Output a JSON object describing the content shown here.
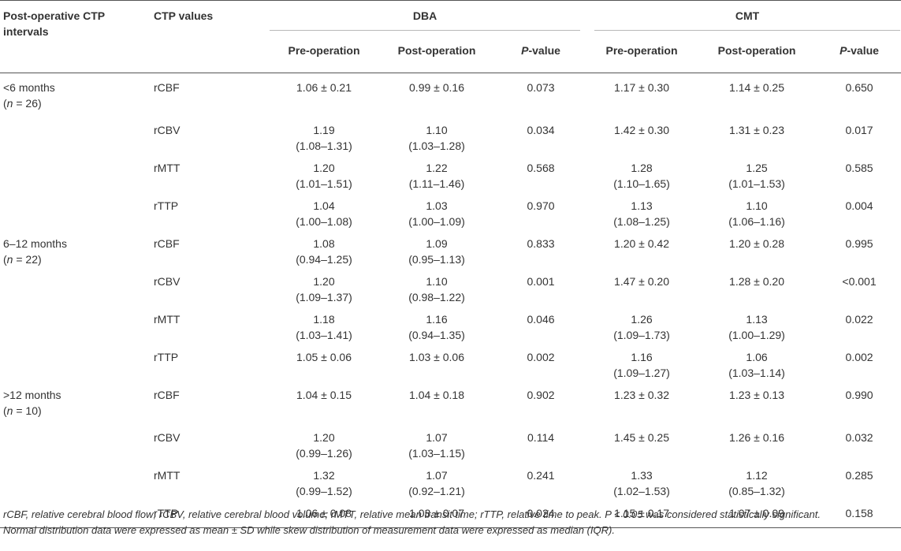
{
  "table": {
    "header": {
      "interval_col": "Post-operative CTP intervals",
      "values_col": "CTP values",
      "group1": "DBA",
      "group2": "CMT",
      "pre": "Pre-operation",
      "post": "Post-operation",
      "p_italic": "P",
      "p_rest": "-value"
    },
    "groups": [
      {
        "interval": "<6 months",
        "n_prefix": "(",
        "n_var": "n",
        "n_rest": " = 26)",
        "rows": [
          {
            "param": "rCBF",
            "dba_pre": "1.06 ± 0.21",
            "dba_pre2": "",
            "dba_post": "0.99 ± 0.16",
            "dba_post2": "",
            "dba_p": "0.073",
            "cmt_pre": "1.17 ± 0.30",
            "cmt_pre2": "",
            "cmt_post": "1.14 ± 0.25",
            "cmt_post2": "",
            "cmt_p": "0.650"
          },
          {
            "param": "rCBV",
            "dba_pre": "1.19",
            "dba_pre2": "(1.08–1.31)",
            "dba_post": "1.10",
            "dba_post2": "(1.03–1.28)",
            "dba_p": "0.034",
            "cmt_pre": "1.42 ± 0.30",
            "cmt_pre2": "",
            "cmt_post": "1.31 ± 0.23",
            "cmt_post2": "",
            "cmt_p": "0.017"
          },
          {
            "param": "rMTT",
            "dba_pre": "1.20",
            "dba_pre2": "(1.01–1.51)",
            "dba_post": "1.22",
            "dba_post2": "(1.11–1.46)",
            "dba_p": "0.568",
            "cmt_pre": "1.28",
            "cmt_pre2": "(1.10–1.65)",
            "cmt_post": "1.25",
            "cmt_post2": "(1.01–1.53)",
            "cmt_p": "0.585"
          },
          {
            "param": "rTTP",
            "dba_pre": "1.04",
            "dba_pre2": "(1.00–1.08)",
            "dba_post": "1.03",
            "dba_post2": "(1.00–1.09)",
            "dba_p": "0.970",
            "cmt_pre": "1.13",
            "cmt_pre2": "(1.08–1.25)",
            "cmt_post": "1.10",
            "cmt_post2": "(1.06–1.16)",
            "cmt_p": "0.004"
          }
        ]
      },
      {
        "interval": "6–12 months",
        "n_prefix": "(",
        "n_var": "n",
        "n_rest": " = 22)",
        "rows": [
          {
            "param": "rCBF",
            "dba_pre": "1.08",
            "dba_pre2": "(0.94–1.25)",
            "dba_post": "1.09",
            "dba_post2": "(0.95–1.13)",
            "dba_p": "0.833",
            "cmt_pre": "1.20 ± 0.42",
            "cmt_pre2": "",
            "cmt_post": "1.20 ± 0.28",
            "cmt_post2": "",
            "cmt_p": "0.995"
          },
          {
            "param": "rCBV",
            "dba_pre": "1.20",
            "dba_pre2": "(1.09–1.37)",
            "dba_post": "1.10",
            "dba_post2": "(0.98–1.22)",
            "dba_p": "0.001",
            "cmt_pre": "1.47 ± 0.20",
            "cmt_pre2": "",
            "cmt_post": "1.28 ± 0.20",
            "cmt_post2": "",
            "cmt_p": "<0.001"
          },
          {
            "param": "rMTT",
            "dba_pre": "1.18",
            "dba_pre2": "(1.03–1.41)",
            "dba_post": "1.16",
            "dba_post2": "(0.94–1.35)",
            "dba_p": "0.046",
            "cmt_pre": "1.26",
            "cmt_pre2": "(1.09–1.73)",
            "cmt_post": "1.13",
            "cmt_post2": "(1.00–1.29)",
            "cmt_p": "0.022"
          },
          {
            "param": "rTTP",
            "dba_pre": "1.05 ± 0.06",
            "dba_pre2": "",
            "dba_post": "1.03 ± 0.06",
            "dba_post2": "",
            "dba_p": "0.002",
            "cmt_pre": "1.16",
            "cmt_pre2": "(1.09–1.27)",
            "cmt_post": "1.06",
            "cmt_post2": "(1.03–1.14)",
            "cmt_p": "0.002"
          }
        ]
      },
      {
        "interval": ">12 months",
        "n_prefix": "(",
        "n_var": "n",
        "n_rest": " = 10)",
        "rows": [
          {
            "param": "rCBF",
            "dba_pre": "1.04 ± 0.15",
            "dba_pre2": "",
            "dba_post": "1.04 ± 0.18",
            "dba_post2": "",
            "dba_p": "0.902",
            "cmt_pre": "1.23 ± 0.32",
            "cmt_pre2": "",
            "cmt_post": "1.23 ± 0.13",
            "cmt_post2": "",
            "cmt_p": "0.990"
          },
          {
            "param": "rCBV",
            "dba_pre": "1.20",
            "dba_pre2": "(0.99–1.26)",
            "dba_post": "1.07",
            "dba_post2": "(1.03–1.15)",
            "dba_p": "0.114",
            "cmt_pre": "1.45 ± 0.25",
            "cmt_pre2": "",
            "cmt_post": "1.26 ± 0.16",
            "cmt_post2": "",
            "cmt_p": "0.032"
          },
          {
            "param": "rMTT",
            "dba_pre": "1.32",
            "dba_pre2": "(0.99–1.52)",
            "dba_post": "1.07",
            "dba_post2": "(0.92–1.21)",
            "dba_p": "0.241",
            "cmt_pre": "1.33",
            "cmt_pre2": "(1.02–1.53)",
            "cmt_post": "1.12",
            "cmt_post2": "(0.85–1.32)",
            "cmt_p": "0.285"
          },
          {
            "param": "rTTP",
            "dba_pre": "1.06 ± 0.08",
            "dba_pre2": "",
            "dba_post": "1.03 ± 0.07",
            "dba_post2": "",
            "dba_p": "0.024",
            "cmt_pre": "1.15 ± 0.17",
            "cmt_pre2": "",
            "cmt_post": "1.07 ± 0.09",
            "cmt_post2": "",
            "cmt_p": "0.158"
          }
        ]
      }
    ]
  },
  "footnote": {
    "line1": "rCBF, relative cerebral blood flow; rCBV, relative cerebral blood volume; rMTT, relative mean transit time; rTTP, relative time to peak. P < 0.05 was considered statistically significant.",
    "line2": "Normal distribution data were expressed as mean ± SD while skew distribution of measurement data were expressed as median (IQR)."
  }
}
